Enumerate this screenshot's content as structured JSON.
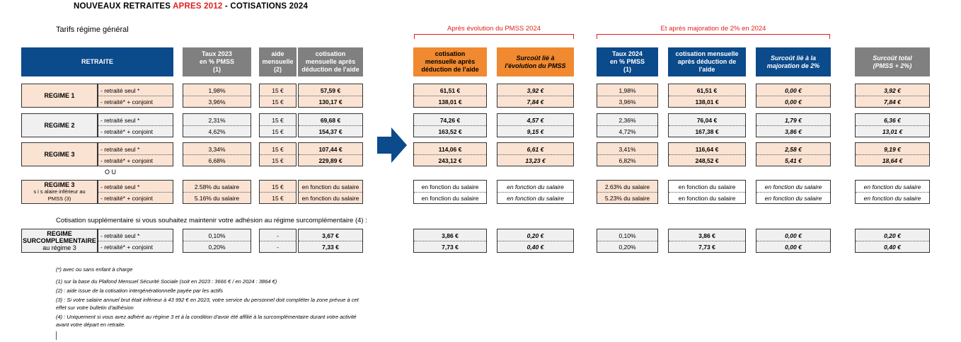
{
  "title": {
    "part1": "NOUVEAUX RETRAITES ",
    "part2": "APRES 2012",
    "part3": " - COTISATIONS 2024"
  },
  "subtitle": "Tarifs régime général",
  "groups": {
    "pmss": "Après évolution du PMSS 2024",
    "majoration": "Et après majoration de 2% en 2024"
  },
  "headers": {
    "retraite": "RETRAITE",
    "taux2023": "Taux 2023\nen % PMSS\n(1)",
    "aide": "aide\nmensuelle\n(2)",
    "cotis_apres_aide": "cotisation\nmensuelle après\ndéduction de l'aide",
    "cotis_pmss": "cotisation\nmensuelle après\ndéduction de l'aide",
    "surcout_pmss": "Surcoût lié à\nl'évolution du PMSS",
    "taux2024": "Taux 2024\nen % PMSS\n(1)",
    "cotis_2024": "cotisation mensuelle\naprès déduction de\nl'aide",
    "surcout_maj": "Surcoût lié à la\nmajoration de 2%",
    "surcout_total": "Surcoût total\n(PMSS + 2%)"
  },
  "rows": [
    {
      "name": "REGIME 1",
      "l1": "- retraité seul *",
      "l2": "- retraité* + conjoint",
      "t23": [
        "1,98%",
        "3,96%"
      ],
      "aide": [
        "15 €",
        "15 €"
      ],
      "c23": [
        "57,59 €",
        "130,17 €"
      ],
      "cp": [
        "61,51 €",
        "138,01 €"
      ],
      "sp": [
        "3,92 €",
        "7,84 €"
      ],
      "t24": [
        "1,98%",
        "3,96%"
      ],
      "c24": [
        "61,51 €",
        "138,01 €"
      ],
      "sm": [
        "0,00 €",
        "0,00 €"
      ],
      "st": [
        "3,92 €",
        "7,84 €"
      ]
    },
    {
      "name": "REGIME 2",
      "l1": "- retraité seul *",
      "l2": "- retraité* + conjoint",
      "t23": [
        "2,31%",
        "4,62%"
      ],
      "aide": [
        "15 €",
        "15 €"
      ],
      "c23": [
        "69,68 €",
        "154,37 €"
      ],
      "cp": [
        "74,26 €",
        "163,52 €"
      ],
      "sp": [
        "4,57 €",
        "9,15 €"
      ],
      "t24": [
        "2,36%",
        "4,72%"
      ],
      "c24": [
        "76,04 €",
        "167,38 €"
      ],
      "sm": [
        "1,79 €",
        "3,86 €"
      ],
      "st": [
        "6,36 €",
        "13,01 €"
      ]
    },
    {
      "name": "REGIME 3",
      "l1": "- retraité seul *",
      "l2": "- retraité* + conjoint",
      "t23": [
        "3,34%",
        "6,68%"
      ],
      "aide": [
        "15 €",
        "15 €"
      ],
      "c23": [
        "107,44 €",
        "229,89 €"
      ],
      "cp": [
        "114,06 €",
        "243,12 €"
      ],
      "sp": [
        "6,61 €",
        "13,23 €"
      ],
      "t24": [
        "3,41%",
        "6,82%"
      ],
      "c24": [
        "116,64 €",
        "248,52 €"
      ],
      "sm": [
        "2,58 €",
        "5,41 €"
      ],
      "st": [
        "9,19 €",
        "18,64 €"
      ]
    },
    {
      "name": "REGIME 3",
      "sub": "s i s alaire inférieur au\nPMSS (3)",
      "l1": "- retraité seul *",
      "l2": "- retraité* + conjoint",
      "t23": [
        "2.58% du salaire",
        "5.16% du salaire"
      ],
      "aide": [
        "15 €",
        "15 €"
      ],
      "c23": [
        "en fonction du salaire",
        "en fonction du salaire"
      ],
      "cp": [
        "en fonction du salaire",
        "en fonction du salaire"
      ],
      "sp": [
        "en fonction du salaire",
        "en fonction du salaire"
      ],
      "t24": [
        "2.63% du salaire",
        "5.23% du salaire"
      ],
      "c24": [
        "en fonction du salaire",
        "en fonction du salaire"
      ],
      "sm": [
        "en fonction du salaire",
        "en fonction du salaire"
      ],
      "st": [
        "en fonction du salaire",
        "en fonction du salaire"
      ]
    },
    {
      "name": "REGIME\nSURCOMPLEMENTAIRE",
      "sub": "au régime 3",
      "l1": "- retraité seul *",
      "l2": "- retraité* + conjoint",
      "t23": [
        "0,10%",
        "0,20%"
      ],
      "aide": [
        "-",
        "-"
      ],
      "c23": [
        "3,67 €",
        "7,33 €"
      ],
      "cp": [
        "3,86 €",
        "7,73 €"
      ],
      "sp": [
        "0,20 €",
        "0,40 €"
      ],
      "t24": [
        "0,10%",
        "0,20%"
      ],
      "c24": [
        "3,86 €",
        "7,73 €"
      ],
      "sm": [
        "0,00 €",
        "0,00 €"
      ],
      "st": [
        "0,20 €",
        "0,40 €"
      ]
    }
  ],
  "ou": "O U",
  "cotis_supp": "Cotisation supplémentaire si vous souhaitez maintenir votre adhésion au régime surcomplémentaire (4) :",
  "notes": [
    "(*) avec ou sans enfant à charge",
    "(1) sur la base du Plafond Mensuel Sécurité Sociale (soit en 2023 : 3666 € / en 2024 : 3864 €)",
    "(2) : aide issue de la cotisation intergénérationnelle payée par les actifs",
    "(3) : Si votre salaire annuel brut était inférieur à 43 992 € en 2023, votre service du personnel doit compléter la zone prévue à cet",
    "effet sur votre bulletin d'adhésion",
    "(4) : Uniquement si vous avez adhéré au régime 3 et à la condition d'avoir été affilié à la surcomplémentaire durant votre activité",
    "avant votre départ en retraite."
  ],
  "colors": {
    "blue": "#0b4a8b",
    "orange": "#f0892f",
    "red": "#e02020",
    "peach": "#fbe3d3",
    "grey": "#808080"
  }
}
